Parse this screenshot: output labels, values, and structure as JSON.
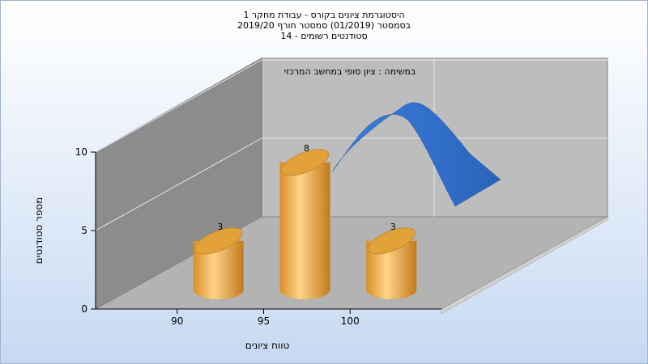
{
  "title_lines": [
    "היסטוגרמת ציונים בקורס - עבודת מחקר 1",
    "בסמסטר  (01/2019)  סמסטר חורף 2019/20",
    "סטודנטים רשומים - 14"
  ],
  "chart_data": {
    "type": "bar",
    "subtitle": "במשימה : ציון סופי במחשב המרכזי",
    "xlabel": "טווח ציונים",
    "ylabel": "מספר סטודנטים",
    "categories": [
      "90",
      "95",
      "100"
    ],
    "series": [
      {
        "values": [
          3,
          8,
          3
        ]
      }
    ],
    "data_labels": [
      "3",
      "8",
      "3"
    ],
    "yticks": [
      "0",
      "5",
      "10"
    ],
    "ylim": [
      0,
      10
    ],
    "curve": "normal-distribution",
    "grid": true,
    "colors": {
      "bar": "#e8a93c",
      "curve": "#2f6fc8",
      "wall": "#8c8c8c",
      "floor": "#b3b3b3",
      "back": "#bdbdbd"
    }
  }
}
